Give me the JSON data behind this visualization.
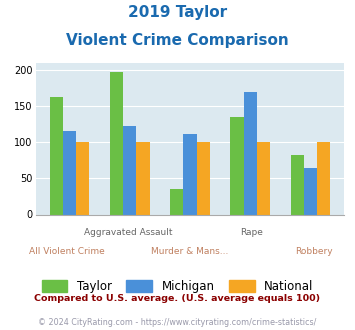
{
  "title_line1": "2019 Taylor",
  "title_line2": "Violent Crime Comparison",
  "title_color": "#1a6aaf",
  "categories": [
    "All Violent Crime",
    "Aggravated Assault",
    "Murder & Mans...",
    "Rape",
    "Robbery"
  ],
  "top_labels": [
    "",
    "Aggravated Assault",
    "",
    "Rape",
    ""
  ],
  "bottom_labels": [
    "All Violent Crime",
    "",
    "Murder & Mans...",
    "",
    "Robbery"
  ],
  "taylor": [
    163,
    197,
    35,
    135,
    82
  ],
  "michigan": [
    115,
    122,
    112,
    170,
    65
  ],
  "national": [
    100,
    100,
    100,
    100,
    100
  ],
  "taylor_color": "#6abf45",
  "michigan_color": "#4a90d9",
  "national_color": "#f5a623",
  "ylim": [
    0,
    210
  ],
  "yticks": [
    0,
    50,
    100,
    150,
    200
  ],
  "bg_color": "#dce9f0",
  "legend_labels": [
    "Taylor",
    "Michigan",
    "National"
  ],
  "footnote1": "Compared to U.S. average. (U.S. average equals 100)",
  "footnote2": "© 2024 CityRating.com - https://www.cityrating.com/crime-statistics/",
  "footnote1_color": "#8b0000",
  "footnote2_color": "#9999aa",
  "top_label_color": "#666666",
  "bottom_label_color": "#c08060",
  "bar_width": 0.22
}
